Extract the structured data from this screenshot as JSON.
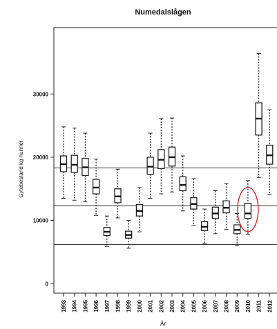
{
  "chart_data": {
    "type": "boxplot",
    "title": "Numedalslågen",
    "xlabel": "År",
    "ylabel": "Gytebestand kg hunner",
    "ylim": [
      -1500,
      40500
    ],
    "yticks": [
      0,
      10000,
      20000,
      30000
    ],
    "ytick_labels": [
      "0",
      "10000",
      "20000",
      "30000"
    ],
    "reference_lines": [
      18300,
      12300,
      6200
    ],
    "highlight_category": "2010",
    "highlight_color": "#d42a2a",
    "categories": [
      "1993",
      "1994",
      "1995",
      "1996",
      "1997",
      "1998",
      "1999",
      "2000",
      "2001",
      "2002",
      "2003",
      "2004",
      "2005",
      "2006",
      "2007",
      "2008",
      "2009",
      "2010",
      "2011",
      "2012"
    ],
    "boxes": [
      {
        "x": "1993",
        "whisker_low": 13500,
        "q1": 17700,
        "median": 18900,
        "q3": 20200,
        "whisker_high": 24800
      },
      {
        "x": "1994",
        "whisker_low": 13200,
        "q1": 17600,
        "median": 18800,
        "q3": 20300,
        "whisker_high": 24600
      },
      {
        "x": "1995",
        "whisker_low": 13000,
        "q1": 17100,
        "median": 18400,
        "q3": 19800,
        "whisker_high": 23800
      },
      {
        "x": "1996",
        "whisker_low": 10800,
        "q1": 14200,
        "median": 15200,
        "q3": 16500,
        "whisker_high": 19700
      },
      {
        "x": "1997",
        "whisker_low": 5900,
        "q1": 7600,
        "median": 8200,
        "q3": 8900,
        "whisker_high": 10700
      },
      {
        "x": "1998",
        "whisker_low": 10400,
        "q1": 12800,
        "median": 13800,
        "q3": 15000,
        "whisker_high": 18100
      },
      {
        "x": "1999",
        "whisker_low": 5600,
        "q1": 7200,
        "median": 7700,
        "q3": 8300,
        "whisker_high": 10000
      },
      {
        "x": "2000",
        "whisker_low": 8200,
        "q1": 10700,
        "median": 11500,
        "q3": 12500,
        "whisker_high": 15200
      },
      {
        "x": "2001",
        "whisker_low": 13500,
        "q1": 17300,
        "median": 18500,
        "q3": 20000,
        "whisker_high": 23800
      },
      {
        "x": "2002",
        "whisker_low": 14200,
        "q1": 18200,
        "median": 19600,
        "q3": 21200,
        "whisker_high": 26100
      },
      {
        "x": "2003",
        "whisker_low": 14500,
        "q1": 18600,
        "median": 20000,
        "q3": 21600,
        "whisker_high": 26200
      },
      {
        "x": "2004",
        "whisker_low": 11500,
        "q1": 14700,
        "median": 15600,
        "q3": 16900,
        "whisker_high": 20200
      },
      {
        "x": "2005",
        "whisker_low": 9200,
        "q1": 11800,
        "median": 12600,
        "q3": 13600,
        "whisker_high": 16600
      },
      {
        "x": "2006",
        "whisker_low": 6400,
        "q1": 8400,
        "median": 9000,
        "q3": 9800,
        "whisker_high": 11800
      },
      {
        "x": "2007",
        "whisker_low": 7900,
        "q1": 10300,
        "median": 11100,
        "q3": 12100,
        "whisker_high": 14700
      },
      {
        "x": "2008",
        "whisker_low": 8600,
        "q1": 11200,
        "median": 12000,
        "q3": 13100,
        "whisker_high": 15800
      },
      {
        "x": "2009",
        "whisker_low": 6000,
        "q1": 7900,
        "median": 8500,
        "q3": 9300,
        "whisker_high": 11100
      },
      {
        "x": "2010",
        "whisker_low": 7800,
        "q1": 10300,
        "median": 11100,
        "q3": 12700,
        "whisker_high": 16300
      },
      {
        "x": "2011",
        "whisker_low": 16800,
        "q1": 23500,
        "median": 26100,
        "q3": 28600,
        "whisker_high": 36400
      },
      {
        "x": "2012",
        "whisker_low": 14100,
        "q1": 18900,
        "median": 20300,
        "q3": 21900,
        "whisker_high": 27500
      }
    ]
  }
}
